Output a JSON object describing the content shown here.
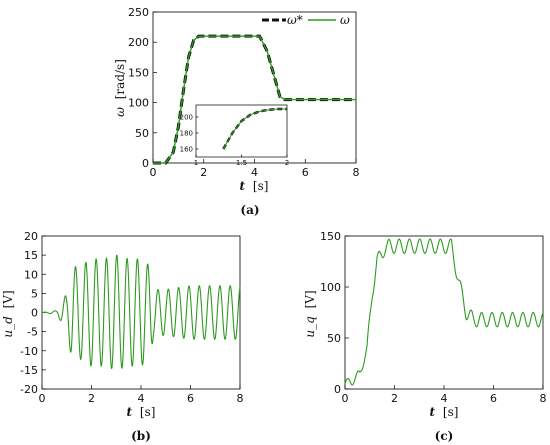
{
  "colors": {
    "ref": "#111111",
    "meas": "#2d9b1e",
    "axis": "#000000"
  },
  "chart_data": [
    {
      "id": "a",
      "type": "line",
      "caption": "(a)",
      "xlabel_var": "t",
      "xlabel_unit": "[s]",
      "ylabel_var": "ω",
      "ylabel_unit": "[rad/s]",
      "xlim": [
        0,
        8
      ],
      "ylim": [
        0,
        250
      ],
      "xticks": [
        "0",
        "2",
        "4",
        "6",
        "8"
      ],
      "yticks": [
        "0",
        "50",
        "100",
        "150",
        "200",
        "250"
      ],
      "legend_position": "top-right",
      "series": [
        {
          "name": "ω*",
          "style": "dashed",
          "x": [
            0,
            0.5,
            0.8,
            1.0,
            1.2,
            1.4,
            1.6,
            1.8,
            4.2,
            4.5,
            4.8,
            5.0,
            5.2,
            5.5,
            8.0
          ],
          "y": [
            0,
            0,
            18,
            60,
            120,
            175,
            203,
            210,
            210,
            185,
            140,
            110,
            105,
            105,
            105
          ]
        },
        {
          "name": "ω",
          "style": "solid",
          "x": [
            0,
            0.5,
            0.8,
            1.0,
            1.2,
            1.4,
            1.6,
            1.8,
            4.2,
            4.5,
            4.8,
            5.0,
            5.2,
            5.5,
            8.0
          ],
          "y": [
            0,
            0,
            18,
            60,
            120,
            175,
            203,
            210,
            210,
            185,
            140,
            110,
            105,
            105,
            105
          ]
        }
      ],
      "inset": {
        "xlim": [
          1,
          2
        ],
        "ylim": [
          150,
          215
        ],
        "xticks": [
          "1",
          "1.5",
          "2"
        ],
        "yticks": [
          "160",
          "180",
          "200"
        ],
        "x": [
          1.3,
          1.4,
          1.5,
          1.6,
          1.7,
          1.8,
          1.9,
          2.0
        ],
        "y": [
          160,
          180,
          195,
          203,
          207,
          209,
          210,
          210
        ]
      }
    },
    {
      "id": "b",
      "type": "line",
      "caption": "(b)",
      "xlabel_var": "t",
      "xlabel_unit": "[s]",
      "ylabel_var": "u_d",
      "ylabel_unit": "[V]",
      "xlim": [
        0,
        8
      ],
      "ylim": [
        -20,
        20
      ],
      "xticks": [
        "0",
        "2",
        "4",
        "6",
        "8"
      ],
      "yticks": [
        "-20",
        "-15",
        "-10",
        "-5",
        "0",
        "5",
        "10",
        "15",
        "20"
      ],
      "envelope": {
        "t": [
          0,
          0.6,
          1.0,
          1.2,
          1.5,
          2.0,
          2.5,
          3.0,
          3.5,
          4.0,
          4.4,
          4.5,
          5.0,
          6.0,
          7.0,
          8.0
        ],
        "amp": [
          0,
          0.5,
          5,
          12,
          12,
          14,
          14,
          15,
          14,
          14,
          12,
          6,
          6,
          7,
          7,
          7
        ]
      },
      "frequency": 2.4
    },
    {
      "id": "c",
      "type": "line",
      "caption": "(c)",
      "xlabel_var": "t",
      "xlabel_unit": "[s]",
      "ylabel_var": "u_q",
      "ylabel_unit": "[V]",
      "xlim": [
        0,
        8
      ],
      "ylim": [
        0,
        150
      ],
      "xticks": [
        "0",
        "2",
        "4",
        "6",
        "8"
      ],
      "yticks": [
        "0",
        "50",
        "100",
        "150"
      ],
      "baseline": {
        "t": [
          0,
          0.3,
          0.6,
          0.9,
          1.1,
          1.3,
          1.6,
          1.8,
          4.3,
          4.6,
          4.9,
          5.2,
          8.0
        ],
        "v": [
          5,
          8,
          15,
          40,
          95,
          125,
          138,
          140,
          140,
          105,
          75,
          68,
          68
        ]
      },
      "ripple": 7,
      "frequency": 2.4
    }
  ]
}
